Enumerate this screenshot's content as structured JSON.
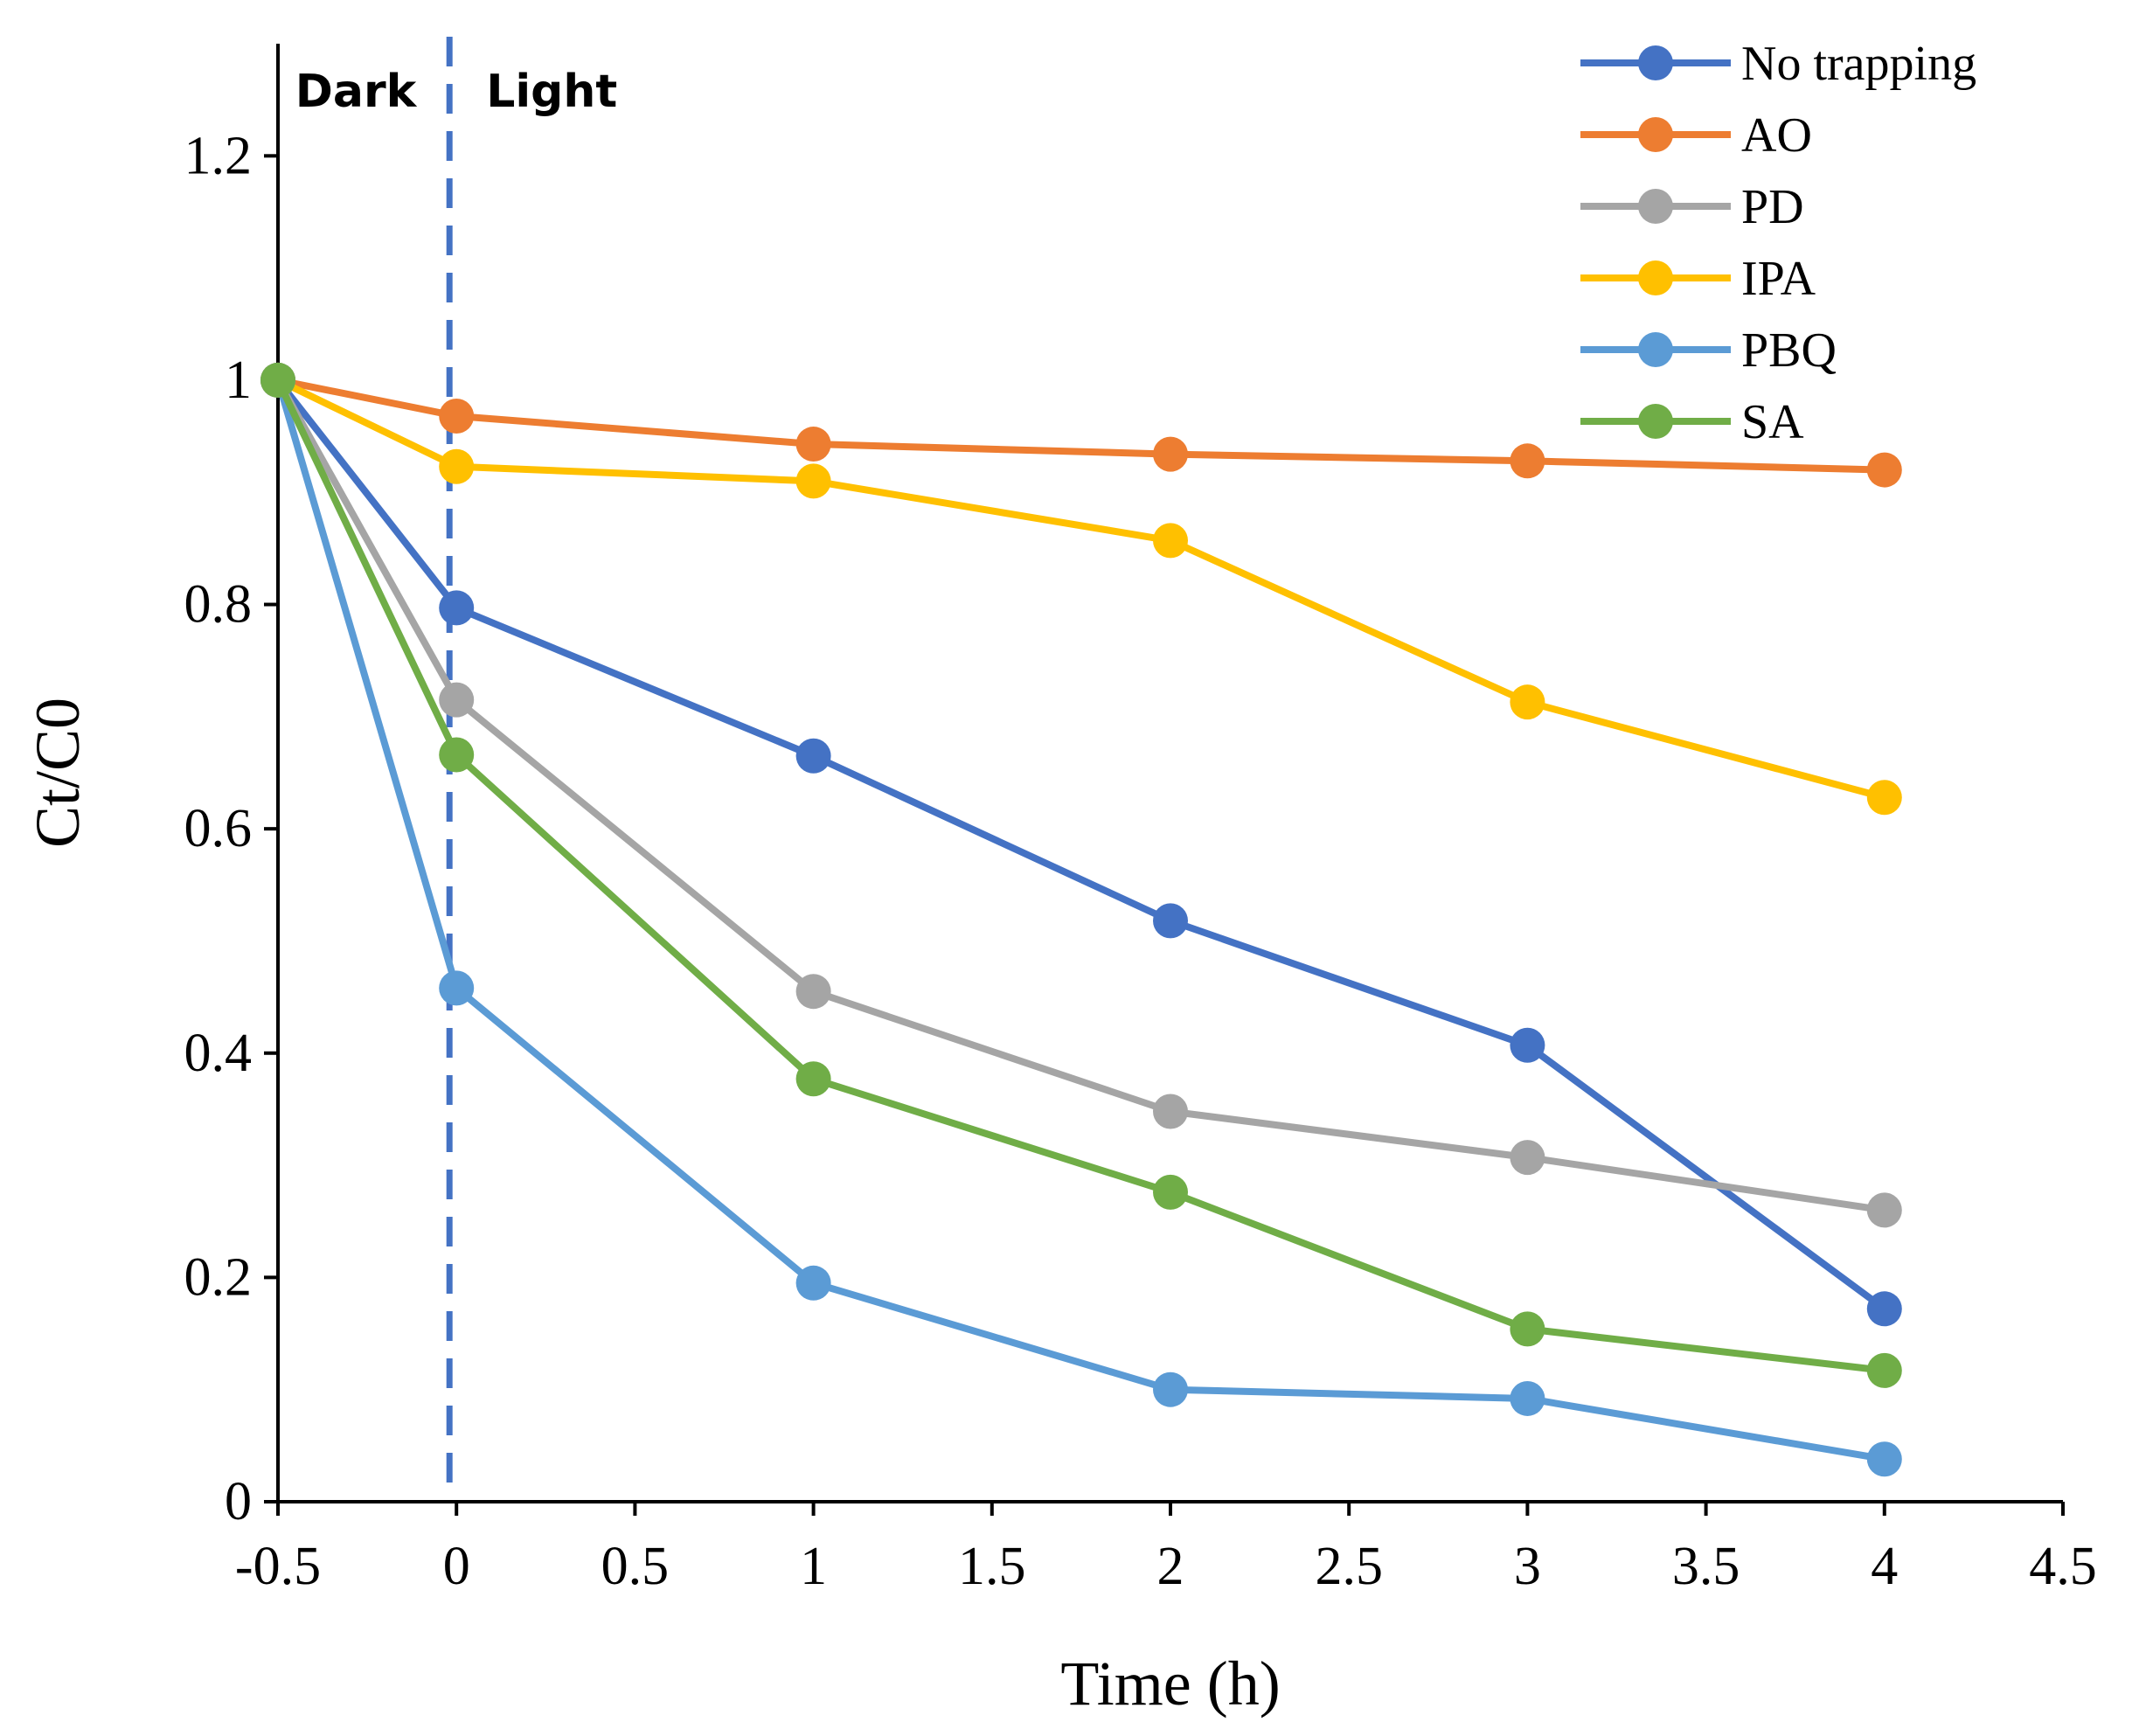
{
  "chart_data": {
    "type": "line",
    "title": "",
    "xlabel": "Time (h)",
    "ylabel": "Ct/C0",
    "xlim": [
      -0.5,
      4.5
    ],
    "ylim": [
      0,
      1.3
    ],
    "x_ticks": [
      -0.5,
      0,
      0.5,
      1,
      1.5,
      2,
      2.5,
      3,
      3.5,
      4,
      4.5
    ],
    "x_tick_labels": [
      "-0.5",
      "0",
      "0.5",
      "1",
      "1.5",
      "2",
      "2.5",
      "3",
      "3.5",
      "4",
      "4.5"
    ],
    "y_ticks": [
      0,
      0.2,
      0.4,
      0.6,
      0.8,
      1,
      1.2
    ],
    "y_tick_labels": [
      "0",
      "0.2",
      "0.4",
      "0.6",
      "0.8",
      "1",
      "1.2"
    ],
    "grid": false,
    "legend_position": "top-right",
    "x": [
      -0.5,
      0,
      1,
      2,
      3,
      4
    ],
    "series": [
      {
        "name": "No trapping",
        "color": "#4472C4",
        "values": [
          1.0,
          0.797,
          0.665,
          0.518,
          0.407,
          0.172
        ]
      },
      {
        "name": "AO",
        "color": "#ED7D31",
        "values": [
          1.0,
          0.968,
          0.943,
          0.934,
          0.928,
          0.92
        ]
      },
      {
        "name": "PD",
        "color": "#A5A5A5",
        "values": [
          1.0,
          0.715,
          0.455,
          0.348,
          0.307,
          0.26
        ]
      },
      {
        "name": "IPA",
        "color": "#FFC000",
        "values": [
          1.0,
          0.923,
          0.91,
          0.857,
          0.713,
          0.628
        ]
      },
      {
        "name": "PBQ",
        "color": "#5B9BD5",
        "values": [
          1.0,
          0.458,
          0.195,
          0.1,
          0.092,
          0.038
        ]
      },
      {
        "name": "SA",
        "color": "#70AD47",
        "values": [
          1.0,
          0.666,
          0.377,
          0.276,
          0.154,
          0.117
        ]
      }
    ],
    "annotations": {
      "dark_label": "Dark",
      "light_label": "Light",
      "divider_x": 0,
      "divider_color": "#4472C4"
    }
  }
}
